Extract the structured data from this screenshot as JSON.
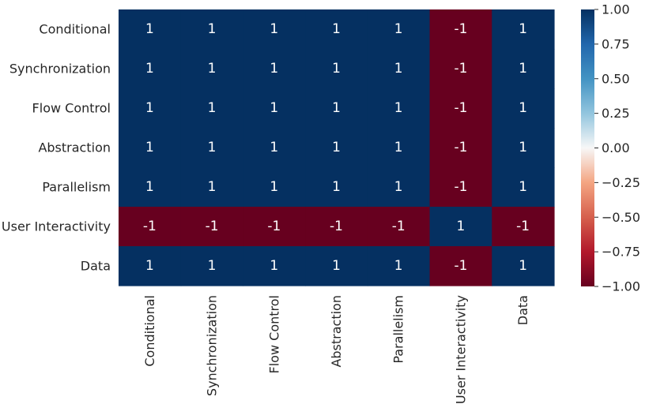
{
  "chart_data": {
    "type": "heatmap",
    "title": "",
    "xlabel": "",
    "ylabel": "",
    "rows": [
      "Conditional",
      "Synchronization",
      "Flow Control",
      "Abstraction",
      "Parallelism",
      "User Interactivity",
      "Data"
    ],
    "columns": [
      "Conditional",
      "Synchronization",
      "Flow Control",
      "Abstraction",
      "Parallelism",
      "User Interactivity",
      "Data"
    ],
    "values": [
      [
        1,
        1,
        1,
        1,
        1,
        -1,
        1
      ],
      [
        1,
        1,
        1,
        1,
        1,
        -1,
        1
      ],
      [
        1,
        1,
        1,
        1,
        1,
        -1,
        1
      ],
      [
        1,
        1,
        1,
        1,
        1,
        -1,
        1
      ],
      [
        1,
        1,
        1,
        1,
        1,
        -1,
        1
      ],
      [
        -1,
        -1,
        -1,
        -1,
        -1,
        1,
        -1
      ],
      [
        1,
        1,
        1,
        1,
        1,
        -1,
        1
      ]
    ],
    "value_labels": [
      [
        "1",
        "1",
        "1",
        "1",
        "1",
        "-1",
        "1"
      ],
      [
        "1",
        "1",
        "1",
        "1",
        "1",
        "-1",
        "1"
      ],
      [
        "1",
        "1",
        "1",
        "1",
        "1",
        "-1",
        "1"
      ],
      [
        "1",
        "1",
        "1",
        "1",
        "1",
        "-1",
        "1"
      ],
      [
        "1",
        "1",
        "1",
        "1",
        "1",
        "-1",
        "1"
      ],
      [
        "-1",
        "-1",
        "-1",
        "-1",
        "-1",
        "1",
        "-1"
      ],
      [
        "1",
        "1",
        "1",
        "1",
        "1",
        "-1",
        "1"
      ]
    ],
    "colormap": "RdBu",
    "vmin": -1.0,
    "vmax": 1.0,
    "annotations": true,
    "colorbar": {
      "ticks": [
        1.0,
        0.75,
        0.5,
        0.25,
        0.0,
        -0.25,
        -0.5,
        -0.75,
        -1.0
      ],
      "tick_labels": [
        "1.00",
        "0.75",
        "0.50",
        "0.25",
        "0.00",
        "−0.25",
        "−0.50",
        "−0.75",
        "−1.00"
      ]
    },
    "colors": {
      "positive": "#053061",
      "negative": "#67001f",
      "positive_text": "#ffffff",
      "negative_text": "#ffffff"
    }
  }
}
